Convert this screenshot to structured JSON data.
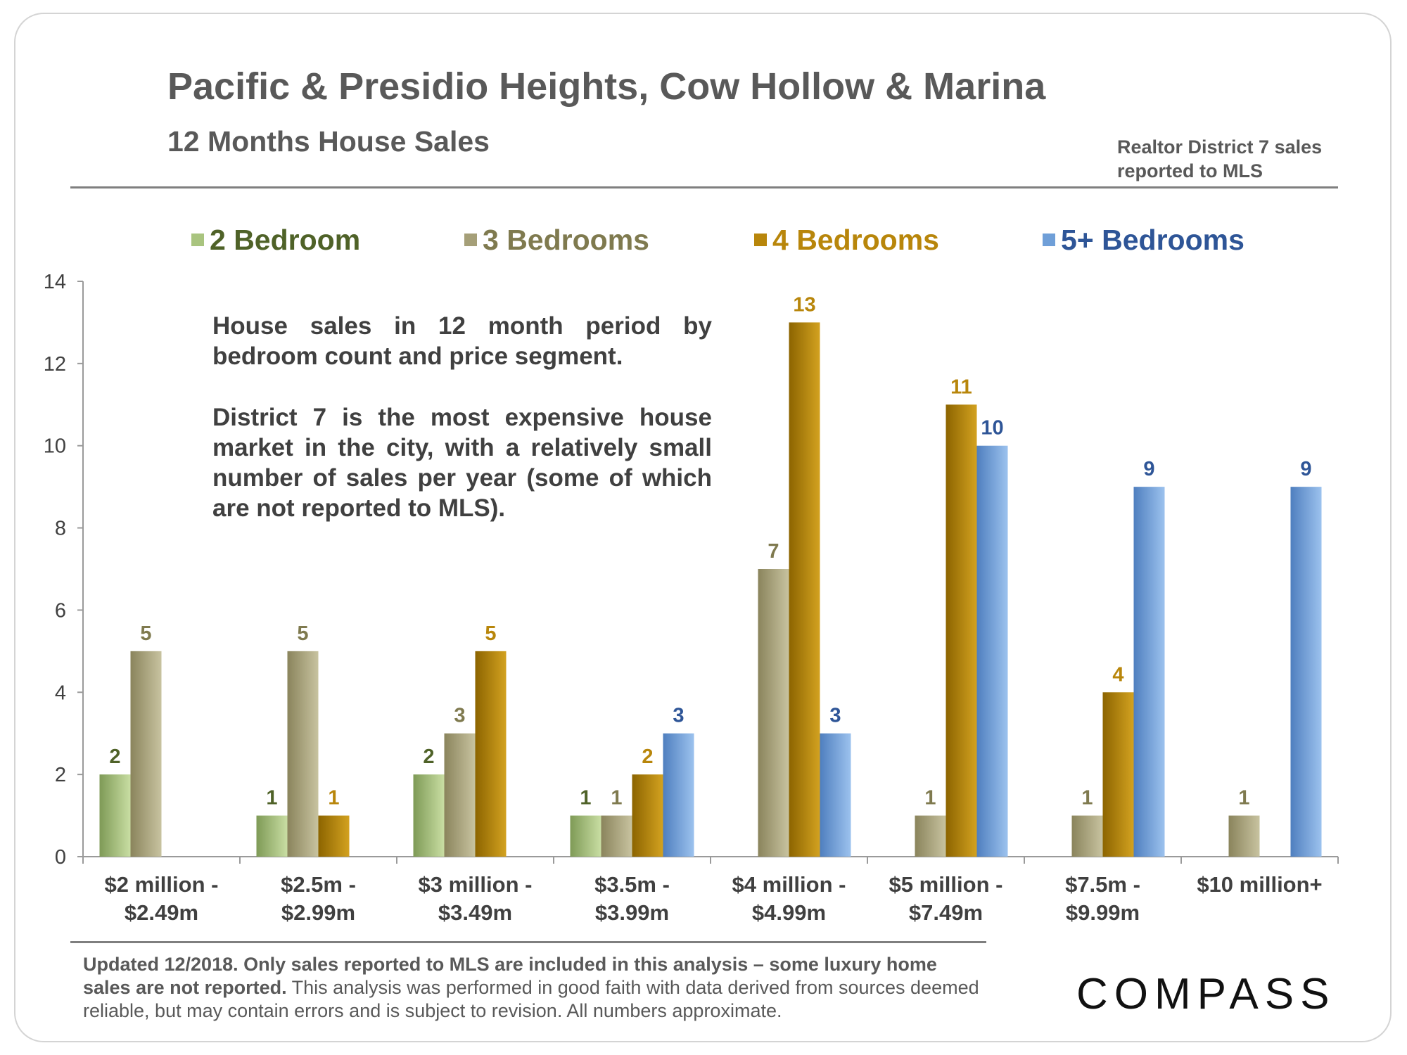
{
  "header": {
    "title": "Pacific & Presidio Heights, Cow Hollow & Marina",
    "subtitle": "12 Months House Sales",
    "source_note": "Realtor District 7 sales reported to MLS"
  },
  "annotation": {
    "paragraph1": "House sales in 12 month period by bedroom count and price segment.",
    "paragraph2": "District 7 is the most expensive house market in the city, with a relatively small number of sales per year (some of which are not reported to MLS)."
  },
  "footer": {
    "bold_text": "Updated 12/2018. Only sales reported to MLS are included in this analysis – some luxury home sales are not reported.",
    "normal_text": " This analysis was performed in good faith with data derived from sources deemed reliable, but may contain errors and is subject to revision. All numbers approximate."
  },
  "logo": {
    "text": "COMPASS"
  },
  "colors": {
    "two_bed": "#a9c47f",
    "three_bed": "#a59f78",
    "four_bed": "#b8860b",
    "five_bed": "#6f9fd8",
    "two_bed_text": "#4f6228",
    "three_bed_text": "#7f7a4f",
    "four_bed_text": "#b8860b",
    "five_bed_text": "#2e5597"
  },
  "chart_data": {
    "type": "bar",
    "title": "12 Months House Sales",
    "xlabel": "",
    "ylabel": "",
    "ylim": [
      0,
      14
    ],
    "yticks": [
      "0",
      "2",
      "4",
      "6",
      "8",
      "10",
      "12",
      "14"
    ],
    "legend_position": "top",
    "categories": [
      [
        "$2 million -",
        "$2.49m"
      ],
      [
        "$2.5m -",
        "$2.99m"
      ],
      [
        "$3 million -",
        "$3.49m"
      ],
      [
        "$3.5m -",
        "$3.99m"
      ],
      [
        "$4 million -",
        "$4.99m"
      ],
      [
        "$5 million -",
        "$7.49m"
      ],
      [
        "$7.5m -",
        "$9.99m"
      ],
      [
        "$10 million+"
      ]
    ],
    "series": [
      {
        "name": "2 Bedroom",
        "key": "two_bed",
        "values": [
          2,
          1,
          2,
          1,
          null,
          null,
          null,
          null
        ]
      },
      {
        "name": "3 Bedrooms",
        "key": "three_bed",
        "values": [
          5,
          5,
          3,
          1,
          7,
          1,
          1,
          1
        ]
      },
      {
        "name": "4 Bedrooms",
        "key": "four_bed",
        "values": [
          null,
          1,
          5,
          2,
          13,
          11,
          4,
          null
        ]
      },
      {
        "name": "5+ Bedrooms",
        "key": "five_bed",
        "values": [
          null,
          null,
          null,
          3,
          3,
          10,
          9,
          9
        ]
      }
    ]
  }
}
